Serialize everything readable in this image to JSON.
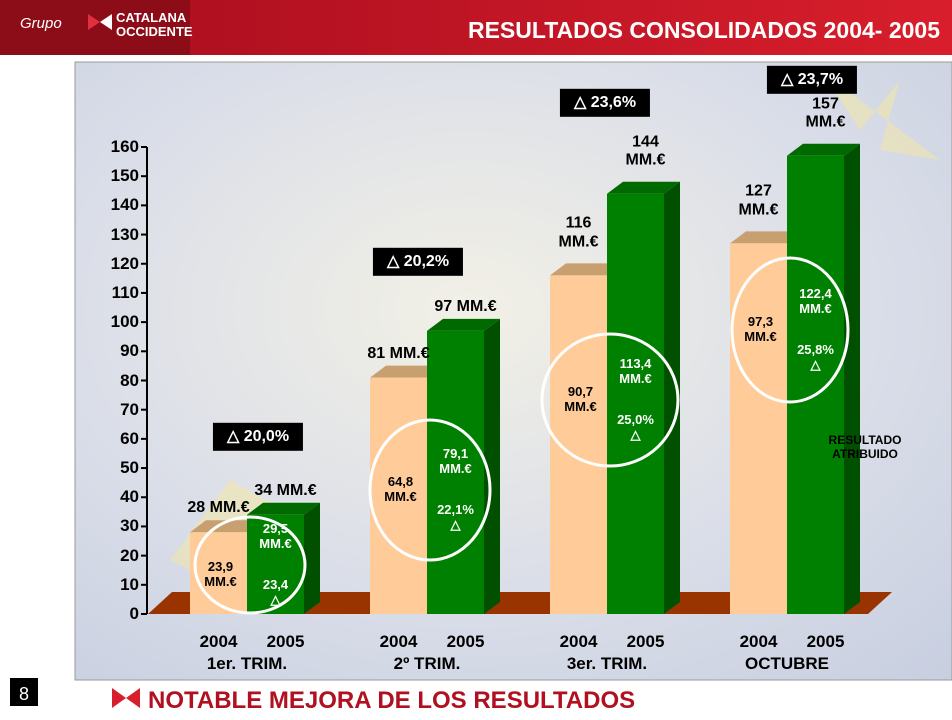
{
  "header": {
    "logo_prefix": "Grupo",
    "logo_name_1": "CATALANA",
    "logo_name_2": "OCCIDENTE",
    "title": "RESULTADOS CONSOLIDADOS 2004- 2005"
  },
  "chart_data": {
    "type": "bar",
    "categories": [
      "1er. TRIM.",
      "2º TRIM.",
      "3er. TRIM.",
      "OCTUBRE"
    ],
    "series": [
      {
        "name": "2004",
        "color": "#ffcc99",
        "values": [
          28,
          81,
          116,
          127
        ],
        "value_labels": [
          "28 MM.€",
          "81 MM.€",
          "116\nMM.€",
          "127\nMM.€"
        ]
      },
      {
        "name": "2005",
        "color": "#008000",
        "values": [
          34,
          97,
          144,
          157
        ],
        "value_labels": [
          "34 MM.€",
          "97 MM.€",
          "144\nMM.€",
          "157\nMM.€"
        ]
      }
    ],
    "ylim": [
      0,
      160
    ],
    "yticks": [
      0,
      10,
      20,
      30,
      40,
      50,
      60,
      70,
      80,
      90,
      100,
      110,
      120,
      130,
      140,
      150,
      160
    ],
    "growth_labels": [
      "△ 20,0%",
      "△ 20,2%",
      "△ 23,6%",
      "△ 23,7%"
    ],
    "attributed_title": "RESULTADO\nATRIBUIDO",
    "attributed_2004": [
      "23,9\nMM.€",
      "64,8\nMM.€",
      "90,7\nMM.€",
      "97,3\nMM.€"
    ],
    "attributed_2005": [
      "29,5\nMM.€",
      "79,1\nMM.€",
      "113,4\nMM.€",
      "122,4\nMM.€"
    ],
    "attributed_growth": [
      "23,4\n△",
      "22,1%\n△",
      "25,0%\n△",
      "25,8%\n△"
    ]
  },
  "footer": {
    "page": "8",
    "headline": "NOTABLE MEJORA DE LOS RESULTADOS"
  }
}
